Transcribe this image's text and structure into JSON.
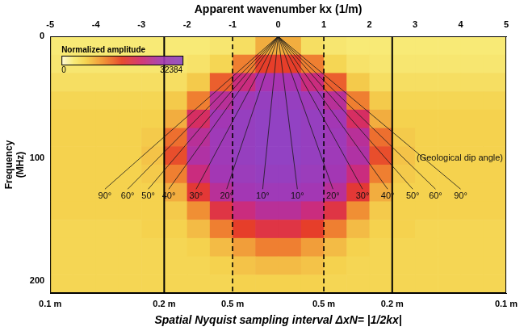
{
  "chart_data": {
    "type": "heatmap",
    "xlabel": "Apparent wavenumber kx (1/m)",
    "xlim": [
      -5,
      5
    ],
    "xticks": [
      -5,
      -4,
      -3,
      -2,
      -1,
      0,
      1,
      2,
      3,
      4,
      5
    ],
    "x2label": "Spatial Nyquist sampling interval ΔxN= |1/2kx|",
    "x2lim": [
      -5,
      5
    ],
    "x2ticks": [
      {
        "value": -5,
        "label": "0.1 m"
      },
      {
        "value": -2.5,
        "label": "0.2 m"
      },
      {
        "value": -1,
        "label": "0.5 m"
      },
      {
        "value": 1,
        "label": "0.5 m"
      },
      {
        "value": 2.5,
        "label": "0.2 m"
      },
      {
        "value": 5,
        "label": "0.1 m"
      }
    ],
    "ylabel": "Frequency (MHz)",
    "ylim": [
      0,
      210
    ],
    "yticks": [
      0,
      100,
      200
    ],
    "grid": false,
    "legend": "none",
    "heatmap": {
      "x_edges": [
        -5,
        -4.5,
        -4,
        -3.5,
        -3,
        -2.5,
        -2,
        -1.5,
        -1,
        -0.5,
        0,
        0.5,
        1,
        1.5,
        2,
        2.5,
        3,
        3.5,
        4,
        4.5,
        5
      ],
      "y_edges": [
        0,
        15,
        30,
        45,
        60,
        75,
        90,
        105,
        120,
        135,
        150,
        165,
        180,
        195,
        210
      ],
      "cells": [
        [
          3500,
          3500,
          3500,
          3500,
          3500,
          3500,
          3500,
          4000,
          5000,
          9000,
          9000,
          5000,
          4000,
          3500,
          3500,
          3500,
          3500,
          3500,
          3500,
          3500
        ],
        [
          4000,
          4000,
          4000,
          4000,
          4000,
          4000,
          4500,
          6000,
          12000,
          16000,
          16000,
          12000,
          6000,
          4500,
          4000,
          4000,
          4000,
          4000,
          4000,
          4000
        ],
        [
          5000,
          5000,
          5000,
          5000,
          5000,
          5000,
          7000,
          14000,
          22000,
          26000,
          26000,
          22000,
          14000,
          7000,
          5000,
          5000,
          5000,
          5000,
          5000,
          5000
        ],
        [
          6000,
          6000,
          6000,
          6000,
          6000,
          7000,
          12000,
          24000,
          28000,
          30000,
          30000,
          28000,
          24000,
          12000,
          7000,
          6000,
          6000,
          6000,
          6000,
          6000
        ],
        [
          6500,
          6500,
          6500,
          6500,
          6500,
          9000,
          20000,
          27000,
          30000,
          31000,
          31000,
          30000,
          27000,
          20000,
          9000,
          6500,
          6500,
          6500,
          6500,
          6500
        ],
        [
          6500,
          6500,
          6500,
          6500,
          7000,
          13000,
          24000,
          28000,
          30000,
          31000,
          31000,
          30000,
          28000,
          24000,
          13000,
          7000,
          6500,
          6500,
          6500,
          6500
        ],
        [
          6500,
          6500,
          6500,
          6500,
          7500,
          15000,
          25000,
          28000,
          30000,
          31000,
          31000,
          30000,
          28000,
          25000,
          15000,
          7500,
          6500,
          6500,
          6500,
          6500
        ],
        [
          6500,
          6500,
          6500,
          6500,
          7000,
          12000,
          22000,
          27000,
          29000,
          30000,
          30000,
          29000,
          27000,
          22000,
          12000,
          7000,
          6500,
          6500,
          6500,
          6500
        ],
        [
          6500,
          6500,
          6500,
          6500,
          6500,
          9000,
          17000,
          24000,
          27000,
          28000,
          28000,
          27000,
          24000,
          17000,
          9000,
          6500,
          6500,
          6500,
          6500,
          6500
        ],
        [
          6500,
          6500,
          6500,
          6500,
          6500,
          7000,
          11000,
          18000,
          22000,
          24000,
          24000,
          22000,
          18000,
          11000,
          7000,
          6500,
          6500,
          6500,
          6500,
          6500
        ],
        [
          6000,
          6000,
          6000,
          6000,
          6500,
          6500,
          8000,
          12000,
          16000,
          18000,
          18000,
          16000,
          12000,
          8000,
          6500,
          6500,
          6000,
          6000,
          6000,
          6000
        ],
        [
          6000,
          6000,
          6000,
          6000,
          6000,
          6000,
          6500,
          8000,
          10000,
          12000,
          12000,
          10000,
          8000,
          6500,
          6000,
          6000,
          6000,
          6000,
          6000,
          6000
        ],
        [
          6000,
          6000,
          6000,
          6000,
          6000,
          6000,
          6000,
          6500,
          7500,
          8000,
          8000,
          7500,
          6500,
          6000,
          6000,
          6000,
          6000,
          6000,
          6000,
          6000
        ],
        [
          6000,
          6000,
          6000,
          6000,
          6000,
          6000,
          6000,
          6000,
          6500,
          6500,
          6500,
          6500,
          6000,
          6000,
          6000,
          6000,
          6000,
          6000,
          6000,
          6000
        ]
      ]
    },
    "colorbar": {
      "title": "Normalized amplitude",
      "range": [
        0,
        32384
      ],
      "ticks": [
        0,
        32384
      ]
    },
    "nyquist_lines": [
      {
        "kx": -2.5,
        "line_style": "solid"
      },
      {
        "kx": -1,
        "line_style": "dashed"
      },
      {
        "kx": 1,
        "line_style": "dashed"
      },
      {
        "kx": 2.5,
        "line_style": "solid"
      }
    ],
    "dip_lines": {
      "origin": {
        "kx": 0,
        "frequency": 0
      },
      "ends": [
        {
          "label": "90°",
          "kx": -3.8,
          "frequency": 125
        },
        {
          "label": "60°",
          "kx": -3.3,
          "frequency": 125
        },
        {
          "label": "50°",
          "kx": -2.85,
          "frequency": 125
        },
        {
          "label": "40°",
          "kx": -2.4,
          "frequency": 125
        },
        {
          "label": "30°",
          "kx": -1.8,
          "frequency": 125
        },
        {
          "label": "20°",
          "kx": -1.13,
          "frequency": 125
        },
        {
          "label": "10°",
          "kx": -0.34,
          "frequency": 125
        },
        {
          "label": "10°",
          "kx": 0.42,
          "frequency": 125
        },
        {
          "label": "20°",
          "kx": 1.2,
          "frequency": 125
        },
        {
          "label": "30°",
          "kx": 1.85,
          "frequency": 125
        },
        {
          "label": "40°",
          "kx": 2.4,
          "frequency": 125
        },
        {
          "label": "50°",
          "kx": 2.95,
          "frequency": 125
        },
        {
          "label": "60°",
          "kx": 3.45,
          "frequency": 125
        },
        {
          "label": "90°",
          "kx": 4.0,
          "frequency": 125
        }
      ]
    },
    "annotations": [
      {
        "text": "(Geological dip angle)",
        "kx": 4.1,
        "frequency": 100
      }
    ]
  }
}
